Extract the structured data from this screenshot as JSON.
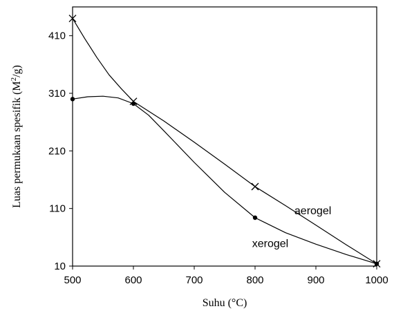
{
  "chart_data": {
    "type": "line",
    "xlabel": "Suhu (°C)",
    "ylabel_main": "Luas permukaan spesifik (M",
    "ylabel_sup": "2",
    "ylabel_tail": "/g)",
    "xlim": [
      500,
      1000
    ],
    "ylim": [
      10,
      460
    ],
    "xticks": [
      500,
      600,
      700,
      800,
      900,
      1000
    ],
    "yticks": [
      10,
      110,
      210,
      310,
      410
    ],
    "grid": false,
    "legend": "none",
    "series": [
      {
        "name": "aerogel",
        "marker": "x",
        "color": "#000000",
        "points": [
          [
            500,
            440
          ],
          [
            600,
            296
          ],
          [
            800,
            148
          ],
          [
            1000,
            14
          ]
        ],
        "curve": [
          [
            500,
            440
          ],
          [
            520,
            405
          ],
          [
            540,
            372
          ],
          [
            560,
            342
          ],
          [
            580,
            318
          ],
          [
            600,
            296
          ],
          [
            650,
            262
          ],
          [
            700,
            225
          ],
          [
            750,
            187
          ],
          [
            800,
            148
          ],
          [
            850,
            115
          ],
          [
            900,
            81
          ],
          [
            950,
            47
          ],
          [
            1000,
            14
          ]
        ]
      },
      {
        "name": "xerogel",
        "marker": "dot",
        "color": "#000000",
        "points": [
          [
            500,
            300
          ],
          [
            600,
            292
          ],
          [
            800,
            94
          ],
          [
            1000,
            14
          ]
        ],
        "curve": [
          [
            500,
            300
          ],
          [
            525,
            304
          ],
          [
            550,
            305
          ],
          [
            575,
            302
          ],
          [
            600,
            292
          ],
          [
            625,
            272
          ],
          [
            650,
            245
          ],
          [
            700,
            190
          ],
          [
            750,
            138
          ],
          [
            800,
            94
          ],
          [
            850,
            68
          ],
          [
            900,
            48
          ],
          [
            950,
            30
          ],
          [
            1000,
            14
          ]
        ]
      }
    ],
    "annotations": [
      {
        "text": "aerogel",
        "x": 895,
        "y": 100
      },
      {
        "text": "xerogel",
        "x": 825,
        "y": 43
      }
    ]
  }
}
